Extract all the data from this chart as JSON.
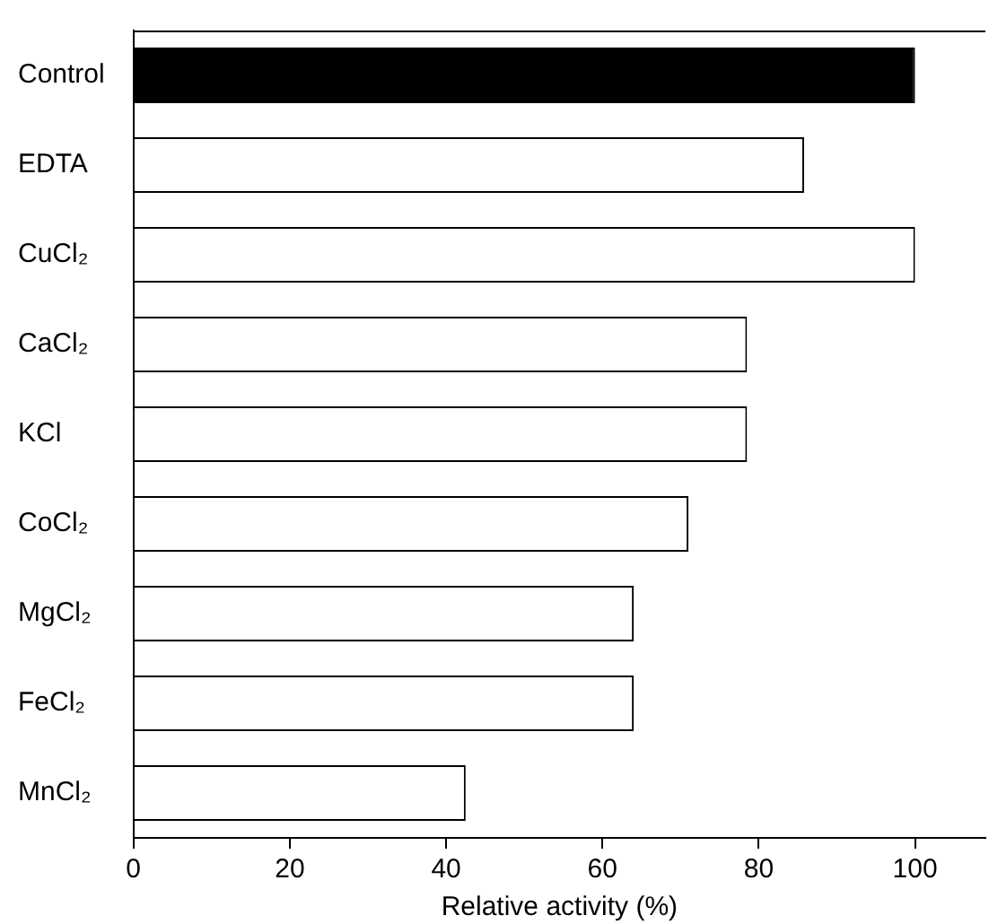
{
  "chart_data": {
    "type": "bar",
    "orientation": "horizontal",
    "xlabel": "Relative activity (%)",
    "categories": [
      "Control",
      "EDTA",
      "CuCl₂",
      "CaCl₂",
      "KCl",
      "CoCl₂",
      "MgCl₂",
      "FeCl₂",
      "MnCl₂"
    ],
    "values": [
      100,
      85.8,
      100,
      78.5,
      78.5,
      71,
      64,
      64,
      42.5
    ],
    "colors": [
      "#000000",
      "#ffffff",
      "#ffffff",
      "#ffffff",
      "#ffffff",
      "#ffffff",
      "#ffffff",
      "#ffffff",
      "#ffffff"
    ],
    "xlim": [
      0,
      109
    ],
    "xticks": [
      0,
      20,
      40,
      60,
      80,
      100
    ],
    "grid": false,
    "legend": false
  }
}
